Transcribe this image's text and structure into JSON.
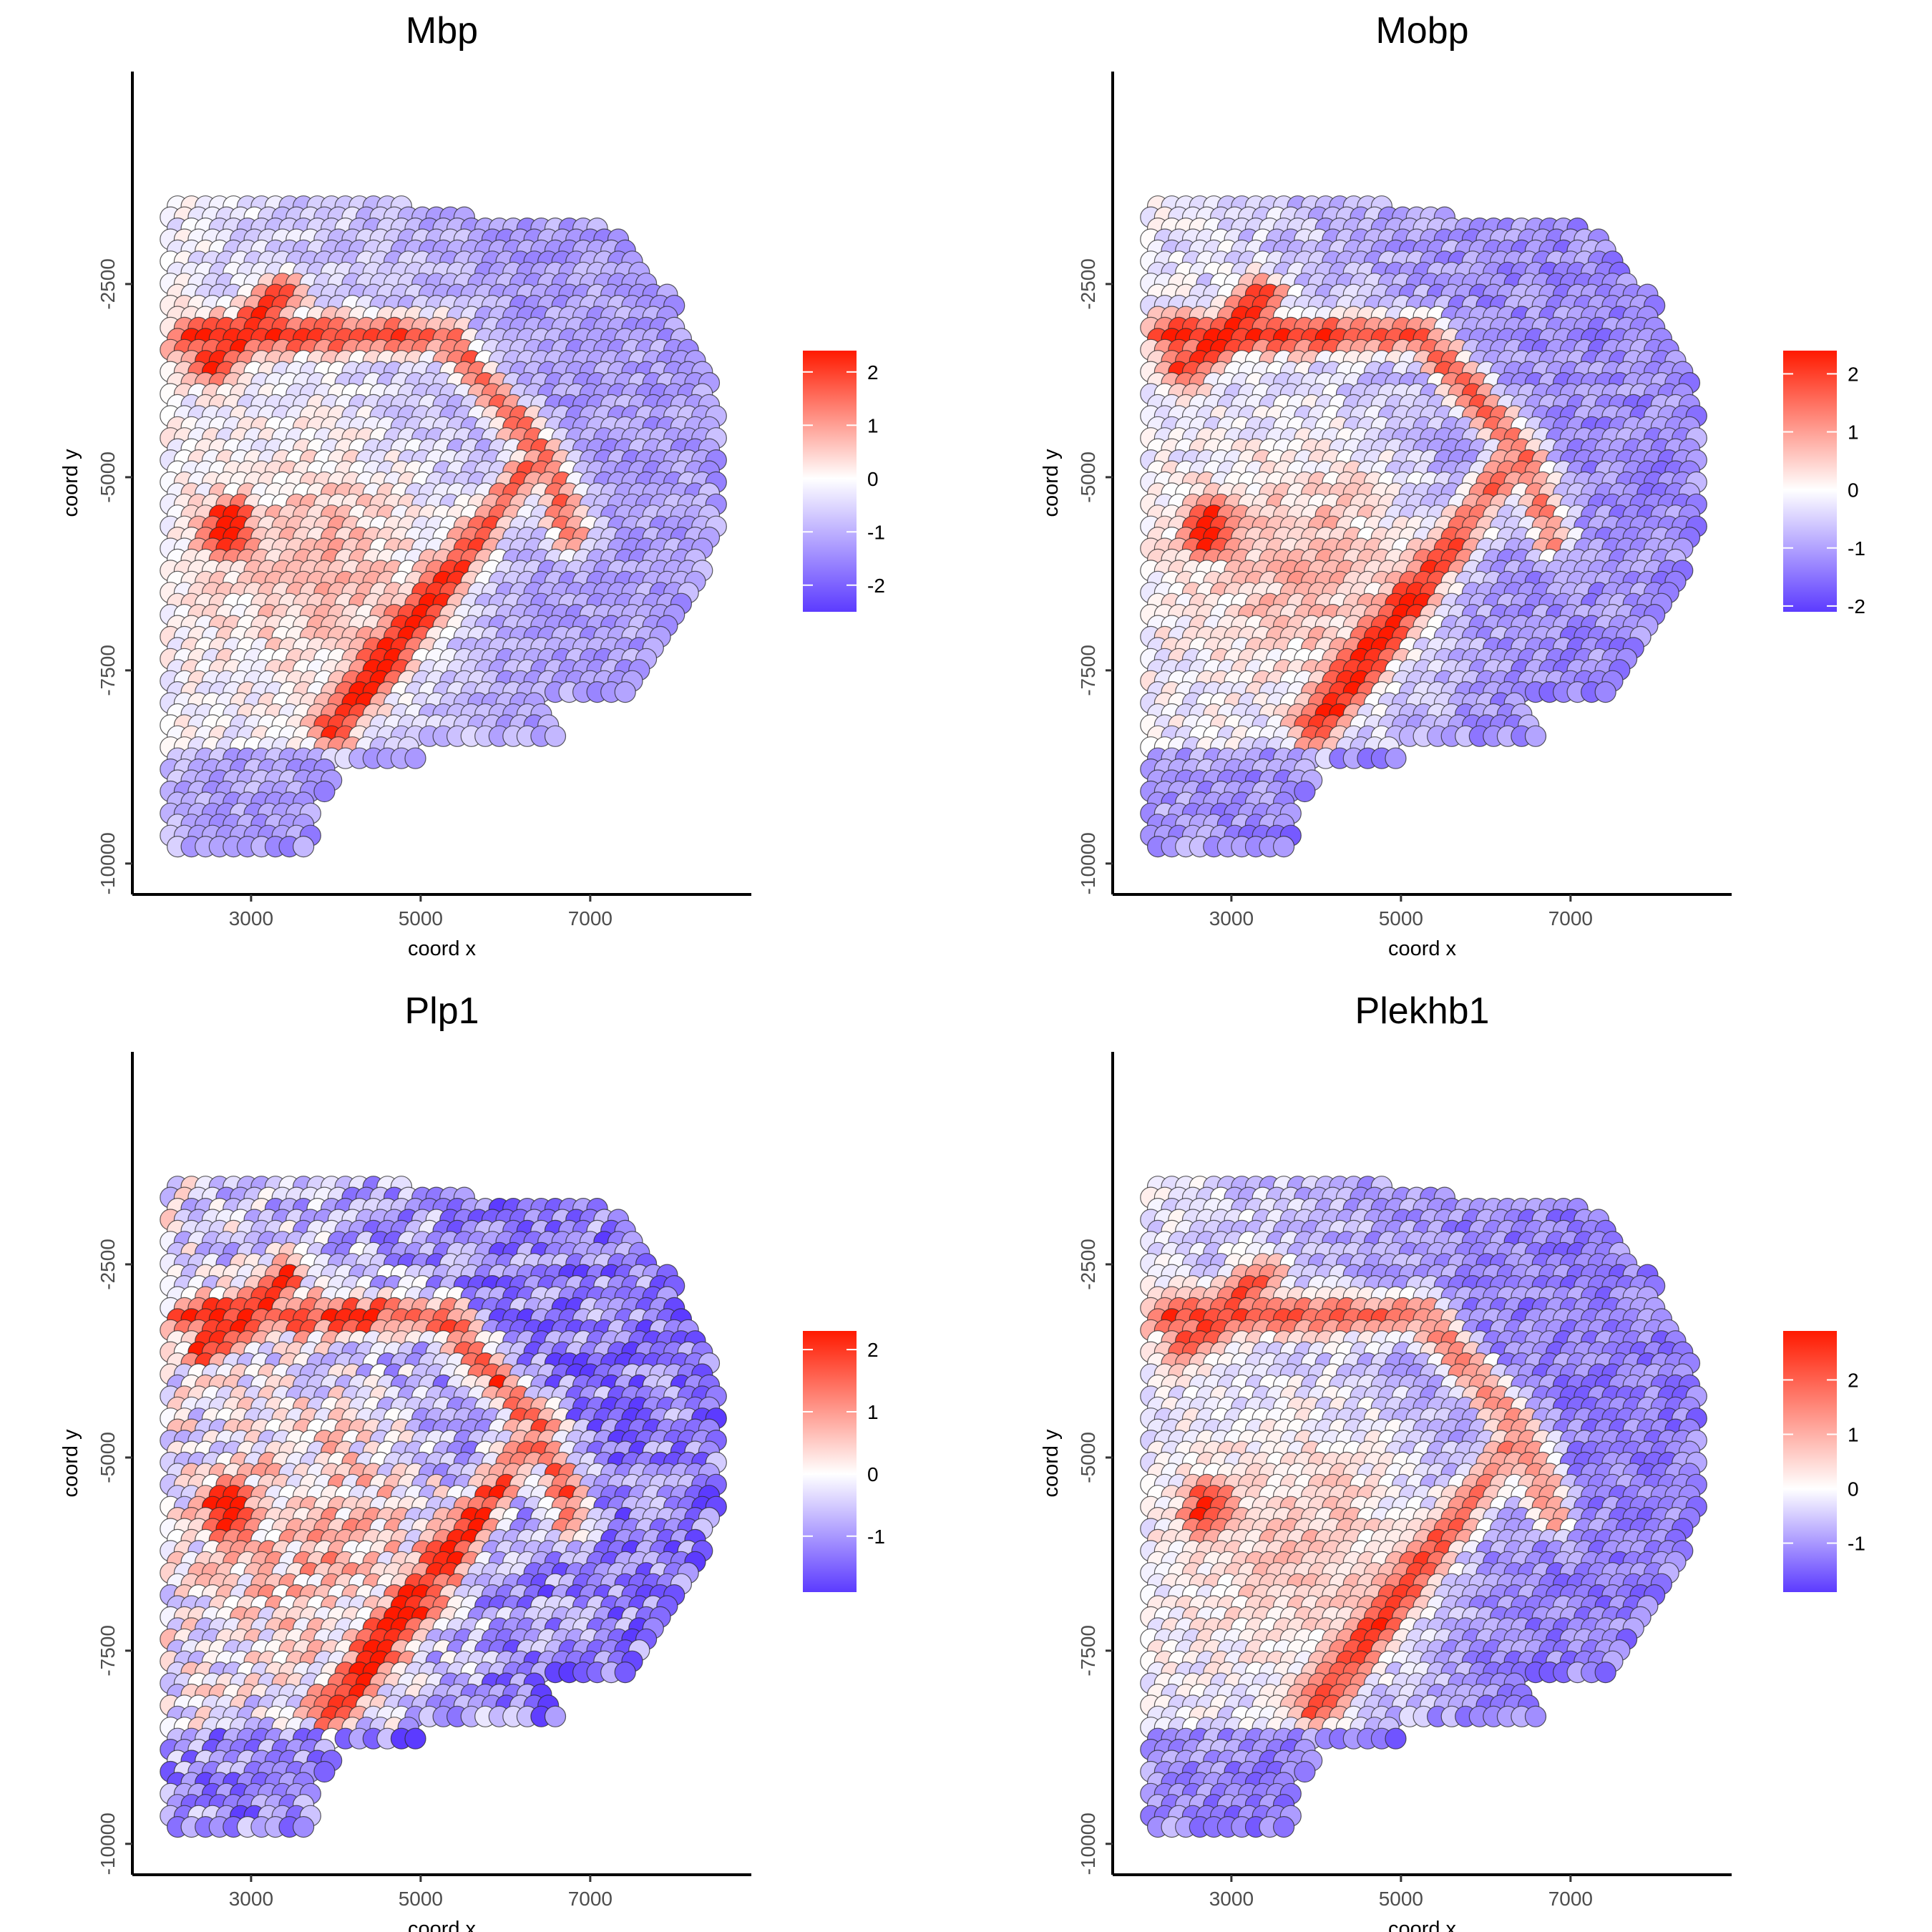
{
  "chart_data": [
    {
      "type": "scatter",
      "title": "Mbp",
      "xlabel": "coord x",
      "ylabel": "coord y",
      "xticks": [
        3000,
        5000,
        7000
      ],
      "yticks": [
        -2500,
        -5000,
        -7500,
        -10000
      ],
      "xlim": [
        1600,
        8900
      ],
      "ylim": [
        -10400,
        250
      ],
      "legend": {
        "position": "right",
        "ticks": [
          2,
          1,
          0,
          -1,
          -2
        ],
        "range": [
          -2.5,
          2.4
        ]
      },
      "low_color": "#5c3bff",
      "mid_color": "#ffffff",
      "high_color": "#ff1a00"
    },
    {
      "type": "scatter",
      "title": "Mobp",
      "xlabel": "coord x",
      "ylabel": "coord y",
      "xticks": [
        3000,
        5000,
        7000
      ],
      "yticks": [
        -2500,
        -5000,
        -7500,
        -10000
      ],
      "xlim": [
        1600,
        8900
      ],
      "ylim": [
        -10400,
        250
      ],
      "legend": {
        "position": "right",
        "ticks": [
          2,
          1,
          0,
          -1,
          -2
        ],
        "range": [
          -2.1,
          2.4
        ]
      },
      "low_color": "#5c3bff",
      "mid_color": "#ffffff",
      "high_color": "#ff1a00"
    },
    {
      "type": "scatter",
      "title": "Plp1",
      "xlabel": "coord x",
      "ylabel": "coord y",
      "xticks": [
        3000,
        5000,
        7000
      ],
      "yticks": [
        -2500,
        -5000,
        -7500,
        -10000
      ],
      "xlim": [
        1600,
        8900
      ],
      "ylim": [
        -10400,
        250
      ],
      "legend": {
        "position": "right",
        "ticks": [
          2,
          1,
          0,
          -1
        ],
        "range": [
          -1.9,
          2.3
        ]
      },
      "low_color": "#5c3bff",
      "mid_color": "#ffffff",
      "high_color": "#ff1a00"
    },
    {
      "type": "scatter",
      "title": "Plekhb1",
      "xlabel": "coord x",
      "ylabel": "coord y",
      "xticks": [
        3000,
        5000,
        7000
      ],
      "yticks": [
        -2500,
        -5000,
        -7500,
        -10000
      ],
      "xlim": [
        1600,
        8900
      ],
      "ylim": [
        -10400,
        250
      ],
      "legend": {
        "position": "right",
        "ticks": [
          2,
          1,
          0,
          -1
        ],
        "range": [
          -1.9,
          2.9
        ]
      },
      "low_color": "#5c3bff",
      "mid_color": "#ffffff",
      "high_color": "#ff1a00"
    }
  ]
}
